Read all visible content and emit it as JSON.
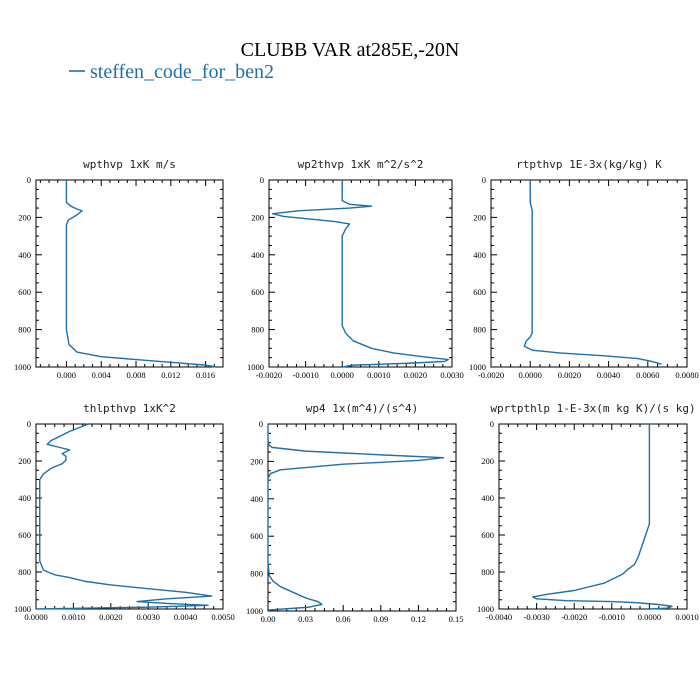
{
  "figure": {
    "title": "CLUBB VAR at285E,-20N",
    "legend_text": "steffen_code_for_ben2",
    "line_color": "#1f6fa8"
  },
  "chart_data": [
    {
      "type": "line",
      "title": "wpthvp  1xK m/s",
      "ylim": [
        1000,
        0
      ],
      "xlim": [
        -0.0035,
        0.018
      ],
      "yticks": [
        0,
        200,
        400,
        600,
        800,
        1000
      ],
      "xticks": [
        0.0,
        0.004,
        0.008,
        0.012,
        0.016
      ],
      "xticklabels": [
        "0.000",
        "0.004",
        "0.008",
        "0.012",
        "0.016"
      ],
      "x": [
        0.0,
        0.0,
        0.0,
        0.0,
        0.0005,
        0.0012,
        0.0018,
        0.0011,
        0.0002,
        0.0,
        0.0,
        0.0,
        0.0,
        0.0,
        0.0,
        0.0,
        0.0,
        0.0,
        0.0,
        0.0,
        0.0,
        0.0,
        0.0,
        0.0,
        0.0003,
        0.0012,
        0.004,
        0.008,
        0.012,
        0.016,
        0.0172
      ],
      "y": [
        0,
        40,
        80,
        120,
        140,
        155,
        165,
        190,
        215,
        240,
        280,
        320,
        360,
        400,
        440,
        480,
        520,
        560,
        600,
        640,
        680,
        720,
        760,
        800,
        880,
        920,
        945,
        960,
        975,
        990,
        1000
      ]
    },
    {
      "type": "line",
      "title": "wp2thvp  1xK m^2/s^2",
      "ylim": [
        1000,
        0
      ],
      "xlim": [
        -0.002,
        0.003
      ],
      "yticks": [
        0,
        200,
        400,
        600,
        800,
        1000
      ],
      "xticks": [
        -0.002,
        -0.001,
        0.0,
        0.001,
        0.002,
        0.003
      ],
      "xticklabels": [
        "-0.0020",
        "-0.0010",
        "0.0000",
        "0.0010",
        "0.0020",
        "0.0030"
      ],
      "x": [
        0.0,
        0.0,
        0.0,
        0.0,
        0.0002,
        0.0008,
        0.0002,
        -0.0012,
        -0.0019,
        -0.0016,
        -0.0008,
        -0.0002,
        0.0002,
        0.0001,
        0.0,
        0.0,
        0.0,
        0.0,
        0.0,
        0.0,
        0.0,
        0.0,
        0.0,
        0.0,
        0.0,
        0.0,
        0.0,
        0.0001,
        0.0003,
        0.0008,
        0.0014,
        0.0022,
        0.0029,
        0.0028,
        0.0018,
        0.0003,
        0.0
      ],
      "y": [
        0,
        40,
        80,
        110,
        130,
        140,
        150,
        165,
        180,
        195,
        210,
        222,
        235,
        260,
        300,
        340,
        380,
        420,
        460,
        500,
        540,
        580,
        620,
        660,
        700,
        740,
        780,
        820,
        860,
        900,
        925,
        945,
        960,
        970,
        980,
        990,
        1000
      ]
    },
    {
      "type": "line",
      "title": "rtpthvp  1E-3x(kg/kg) K",
      "ylim": [
        1000,
        0
      ],
      "xlim": [
        -0.002,
        0.008
      ],
      "yticks": [
        0,
        200,
        400,
        600,
        800,
        1000
      ],
      "xticks": [
        -0.002,
        0.0,
        0.002,
        0.004,
        0.006,
        0.008
      ],
      "xticklabels": [
        "-0.0020",
        "0.0000",
        "0.0020",
        "0.0040",
        "0.0060",
        "0.0080"
      ],
      "x": [
        0.0,
        0.0,
        0.0,
        0.0001,
        0.0001,
        0.0001,
        0.0001,
        0.0001,
        0.0001,
        0.0001,
        0.0001,
        0.0001,
        0.0001,
        0.0001,
        0.0001,
        0.0001,
        0.0001,
        0.0,
        -0.0002,
        -0.0003,
        0.0001,
        0.0015,
        0.0038,
        0.0055,
        0.0062,
        0.0067
      ],
      "y": [
        0,
        60,
        120,
        160,
        200,
        240,
        300,
        360,
        420,
        480,
        540,
        600,
        660,
        720,
        760,
        800,
        820,
        840,
        860,
        890,
        910,
        925,
        940,
        955,
        970,
        985
      ]
    },
    {
      "type": "line",
      "title": "thlpthvp  1xK^2",
      "ylim": [
        1000,
        0
      ],
      "xlim": [
        0.0,
        0.005
      ],
      "yticks": [
        0,
        200,
        400,
        600,
        800,
        1000
      ],
      "xticks": [
        0.0,
        0.001,
        0.002,
        0.003,
        0.004,
        0.005
      ],
      "xticklabels": [
        "0.0000",
        "0.0010",
        "0.0020",
        "0.0030",
        "0.0040",
        "0.0050"
      ],
      "x": [
        0.0014,
        0.0009,
        0.0006,
        0.0004,
        0.0003,
        0.0006,
        0.0009,
        0.0007,
        0.0008,
        0.0008,
        0.0007,
        0.0004,
        0.0002,
        0.0001,
        0.0001,
        0.0001,
        0.0001,
        0.0001,
        0.0001,
        0.0001,
        0.0001,
        0.0001,
        0.0001,
        0.0001,
        0.0001,
        0.0002,
        0.0005,
        0.0009,
        0.0013,
        0.002,
        0.003,
        0.004,
        0.0047,
        0.0035,
        0.0027,
        0.0035,
        0.0046,
        0.003,
        0.0
      ],
      "y": [
        0,
        40,
        70,
        90,
        110,
        125,
        140,
        160,
        175,
        195,
        215,
        240,
        270,
        300,
        340,
        380,
        420,
        460,
        500,
        540,
        580,
        620,
        660,
        700,
        740,
        790,
        815,
        830,
        850,
        870,
        890,
        910,
        930,
        945,
        960,
        970,
        980,
        990,
        1000
      ]
    },
    {
      "type": "line",
      "title": "wp4  1x(m^4)/(s^4)",
      "ylim": [
        1000,
        0
      ],
      "xlim": [
        0.0,
        0.15
      ],
      "yticks": [
        0,
        200,
        400,
        600,
        800,
        1000
      ],
      "xticks": [
        0.0,
        0.03,
        0.06,
        0.09,
        0.12,
        0.15
      ],
      "xticklabels": [
        "0.00",
        "0.03",
        "0.06",
        "0.09",
        "0.12",
        "0.15"
      ],
      "x": [
        0.0,
        0.0,
        0.0,
        0.0005,
        0.003,
        0.03,
        0.09,
        0.14,
        0.12,
        0.06,
        0.01,
        0.002,
        0.0,
        0.0,
        0.0,
        0.0,
        0.0,
        0.0,
        0.0,
        0.0,
        0.0,
        0.0,
        0.001,
        0.004,
        0.01,
        0.02,
        0.03,
        0.04,
        0.043,
        0.032,
        0.0
      ],
      "y": [
        0,
        40,
        80,
        110,
        125,
        145,
        165,
        180,
        195,
        215,
        245,
        265,
        290,
        340,
        390,
        440,
        490,
        540,
        590,
        640,
        690,
        740,
        810,
        840,
        870,
        900,
        930,
        950,
        965,
        980,
        995
      ]
    },
    {
      "type": "line",
      "title": "wprtpthlp  1-E-3x(m kg K)/(s kg)",
      "ylim": [
        1000,
        0
      ],
      "xlim": [
        -0.004,
        0.001
      ],
      "yticks": [
        0,
        200,
        400,
        600,
        800,
        1000
      ],
      "xticks": [
        -0.004,
        -0.003,
        -0.002,
        -0.001,
        0.0,
        0.001
      ],
      "xticklabels": [
        "-0.0040",
        "-0.0030",
        "-0.0020",
        "-0.0010",
        "0.0000",
        "0.0010"
      ],
      "x": [
        0.0,
        0.0,
        0.0,
        0.0,
        0.0,
        0.0,
        0.0,
        0.0,
        0.0,
        0.0,
        -0.0001,
        -0.0002,
        -0.0003,
        -0.0004,
        -0.0006,
        -0.0007,
        -0.0012,
        -0.002,
        -0.0027,
        -0.0031,
        -0.003,
        -0.0022,
        -0.001,
        -0.0004,
        0.0002,
        0.0006,
        0.0005,
        0.0
      ],
      "y": [
        0,
        60,
        120,
        180,
        240,
        300,
        360,
        420,
        480,
        540,
        600,
        660,
        720,
        760,
        790,
        810,
        860,
        900,
        920,
        935,
        945,
        955,
        960,
        965,
        975,
        985,
        995,
        1000
      ]
    }
  ]
}
